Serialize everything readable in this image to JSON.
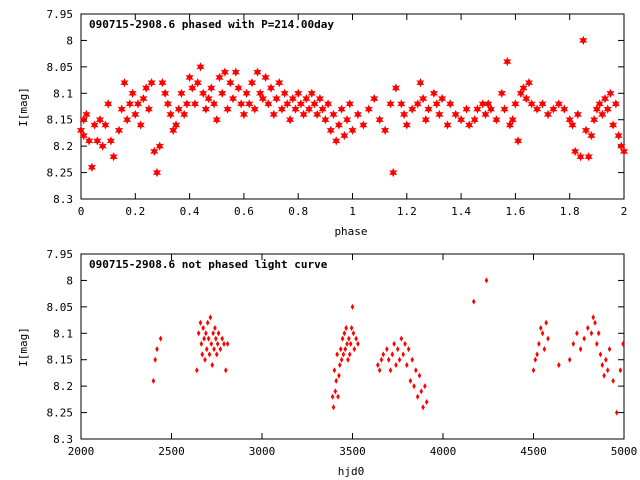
{
  "chart_data": [
    {
      "type": "scatter",
      "title": "090715-2908.6 phased with P=214.00day",
      "xlabel": "phase",
      "ylabel": "I[mag]",
      "xlim": [
        0,
        2
      ],
      "ylim": [
        7.95,
        8.3
      ],
      "y_inverted": true,
      "grid": false,
      "marker": "star",
      "color": "#ff0000",
      "x_ticks": [
        {
          "v": 0,
          "label": "0"
        },
        {
          "v": 0.2,
          "label": "0.2"
        },
        {
          "v": 0.4,
          "label": "0.4"
        },
        {
          "v": 0.6,
          "label": "0.6"
        },
        {
          "v": 0.8,
          "label": "0.8"
        },
        {
          "v": 1,
          "label": "1"
        },
        {
          "v": 1.2,
          "label": "1.2"
        },
        {
          "v": 1.4,
          "label": "1.4"
        },
        {
          "v": 1.6,
          "label": "1.6"
        },
        {
          "v": 1.8,
          "label": "1.8"
        },
        {
          "v": 2,
          "label": "2"
        }
      ],
      "y_ticks": [
        {
          "v": 7.95,
          "label": "7.95"
        },
        {
          "v": 8,
          "label": "8"
        },
        {
          "v": 8.05,
          "label": "8.05"
        },
        {
          "v": 8.1,
          "label": "8.1"
        },
        {
          "v": 8.15,
          "label": "8.15"
        },
        {
          "v": 8.2,
          "label": "8.2"
        },
        {
          "v": 8.25,
          "label": "8.25"
        },
        {
          "v": 8.3,
          "label": "8.3"
        }
      ],
      "points": [
        [
          0.0,
          8.17
        ],
        [
          0.01,
          8.15
        ],
        [
          0.01,
          8.18
        ],
        [
          0.02,
          8.14
        ],
        [
          0.03,
          8.19
        ],
        [
          0.04,
          8.24
        ],
        [
          0.05,
          8.16
        ],
        [
          0.06,
          8.19
        ],
        [
          0.07,
          8.15
        ],
        [
          0.08,
          8.2
        ],
        [
          0.09,
          8.16
        ],
        [
          0.1,
          8.12
        ],
        [
          0.11,
          8.19
        ],
        [
          0.12,
          8.22
        ],
        [
          0.14,
          8.17
        ],
        [
          0.15,
          8.13
        ],
        [
          0.16,
          8.08
        ],
        [
          0.17,
          8.15
        ],
        [
          0.18,
          8.12
        ],
        [
          0.19,
          8.1
        ],
        [
          0.2,
          8.14
        ],
        [
          0.21,
          8.12
        ],
        [
          0.22,
          8.16
        ],
        [
          0.23,
          8.11
        ],
        [
          0.24,
          8.09
        ],
        [
          0.25,
          8.13
        ],
        [
          0.26,
          8.08
        ],
        [
          0.27,
          8.21
        ],
        [
          0.28,
          8.25
        ],
        [
          0.29,
          8.2
        ],
        [
          0.3,
          8.08
        ],
        [
          0.31,
          8.1
        ],
        [
          0.32,
          8.12
        ],
        [
          0.33,
          8.14
        ],
        [
          0.34,
          8.17
        ],
        [
          0.35,
          8.16
        ],
        [
          0.36,
          8.13
        ],
        [
          0.37,
          8.1
        ],
        [
          0.38,
          8.14
        ],
        [
          0.39,
          8.12
        ],
        [
          0.4,
          8.07
        ],
        [
          0.41,
          8.09
        ],
        [
          0.42,
          8.12
        ],
        [
          0.43,
          8.08
        ],
        [
          0.44,
          8.05
        ],
        [
          0.45,
          8.1
        ],
        [
          0.46,
          8.13
        ],
        [
          0.47,
          8.11
        ],
        [
          0.48,
          8.09
        ],
        [
          0.49,
          8.12
        ],
        [
          0.5,
          8.15
        ],
        [
          0.51,
          8.07
        ],
        [
          0.52,
          8.1
        ],
        [
          0.53,
          8.06
        ],
        [
          0.54,
          8.13
        ],
        [
          0.55,
          8.08
        ],
        [
          0.56,
          8.11
        ],
        [
          0.57,
          8.06
        ],
        [
          0.58,
          8.09
        ],
        [
          0.59,
          8.12
        ],
        [
          0.6,
          8.14
        ],
        [
          0.61,
          8.1
        ],
        [
          0.62,
          8.12
        ],
        [
          0.63,
          8.08
        ],
        [
          0.64,
          8.13
        ],
        [
          0.65,
          8.06
        ],
        [
          0.66,
          8.1
        ],
        [
          0.67,
          8.11
        ],
        [
          0.68,
          8.07
        ],
        [
          0.69,
          8.12
        ],
        [
          0.7,
          8.09
        ],
        [
          0.71,
          8.14
        ],
        [
          0.72,
          8.11
        ],
        [
          0.73,
          8.08
        ],
        [
          0.74,
          8.13
        ],
        [
          0.75,
          8.1
        ],
        [
          0.76,
          8.12
        ],
        [
          0.77,
          8.15
        ],
        [
          0.78,
          8.11
        ],
        [
          0.79,
          8.13
        ],
        [
          0.8,
          8.1
        ],
        [
          0.81,
          8.12
        ],
        [
          0.82,
          8.14
        ],
        [
          0.83,
          8.11
        ],
        [
          0.84,
          8.13
        ],
        [
          0.85,
          8.1
        ],
        [
          0.86,
          8.12
        ],
        [
          0.87,
          8.14
        ],
        [
          0.88,
          8.11
        ],
        [
          0.89,
          8.13
        ],
        [
          0.9,
          8.15
        ],
        [
          0.91,
          8.12
        ],
        [
          0.92,
          8.17
        ],
        [
          0.93,
          8.14
        ],
        [
          0.94,
          8.19
        ],
        [
          0.95,
          8.16
        ],
        [
          0.96,
          8.13
        ],
        [
          0.97,
          8.18
        ],
        [
          0.98,
          8.15
        ],
        [
          0.99,
          8.12
        ],
        [
          1.0,
          8.17
        ],
        [
          1.02,
          8.14
        ],
        [
          1.04,
          8.16
        ],
        [
          1.06,
          8.13
        ],
        [
          1.08,
          8.11
        ],
        [
          1.1,
          8.15
        ],
        [
          1.12,
          8.17
        ],
        [
          1.14,
          8.12
        ],
        [
          1.15,
          8.25
        ],
        [
          1.16,
          8.09
        ],
        [
          1.18,
          8.12
        ],
        [
          1.19,
          8.14
        ],
        [
          1.2,
          8.16
        ],
        [
          1.22,
          8.13
        ],
        [
          1.24,
          8.12
        ],
        [
          1.25,
          8.08
        ],
        [
          1.26,
          8.11
        ],
        [
          1.27,
          8.15
        ],
        [
          1.28,
          8.13
        ],
        [
          1.3,
          8.1
        ],
        [
          1.31,
          8.12
        ],
        [
          1.32,
          8.14
        ],
        [
          1.33,
          8.11
        ],
        [
          1.35,
          8.16
        ],
        [
          1.36,
          8.12
        ],
        [
          1.38,
          8.14
        ],
        [
          1.4,
          8.15
        ],
        [
          1.42,
          8.13
        ],
        [
          1.43,
          8.16
        ],
        [
          1.45,
          8.15
        ],
        [
          1.46,
          8.13
        ],
        [
          1.48,
          8.12
        ],
        [
          1.49,
          8.14
        ],
        [
          1.5,
          8.12
        ],
        [
          1.51,
          8.13
        ],
        [
          1.53,
          8.15
        ],
        [
          1.55,
          8.1
        ],
        [
          1.56,
          8.13
        ],
        [
          1.57,
          8.04
        ],
        [
          1.58,
          8.16
        ],
        [
          1.59,
          8.15
        ],
        [
          1.6,
          8.12
        ],
        [
          1.61,
          8.19
        ],
        [
          1.62,
          8.1
        ],
        [
          1.63,
          8.09
        ],
        [
          1.64,
          8.11
        ],
        [
          1.65,
          8.08
        ],
        [
          1.66,
          8.12
        ],
        [
          1.68,
          8.13
        ],
        [
          1.7,
          8.12
        ],
        [
          1.72,
          8.14
        ],
        [
          1.74,
          8.13
        ],
        [
          1.76,
          8.12
        ],
        [
          1.78,
          8.13
        ],
        [
          1.8,
          8.15
        ],
        [
          1.81,
          8.16
        ],
        [
          1.82,
          8.21
        ],
        [
          1.83,
          8.14
        ],
        [
          1.84,
          8.22
        ],
        [
          1.85,
          8.0
        ],
        [
          1.86,
          8.17
        ],
        [
          1.87,
          8.22
        ],
        [
          1.88,
          8.18
        ],
        [
          1.89,
          8.15
        ],
        [
          1.9,
          8.13
        ],
        [
          1.91,
          8.12
        ],
        [
          1.92,
          8.14
        ],
        [
          1.93,
          8.11
        ],
        [
          1.94,
          8.13
        ],
        [
          1.95,
          8.1
        ],
        [
          1.96,
          8.16
        ],
        [
          1.97,
          8.12
        ],
        [
          1.98,
          8.18
        ],
        [
          1.99,
          8.2
        ],
        [
          2.0,
          8.21
        ]
      ]
    },
    {
      "type": "scatter",
      "title": "090715-2908.6 not phased light curve",
      "xlabel": "hjd0",
      "ylabel": "I[mag]",
      "xlim": [
        2000,
        5000
      ],
      "ylim": [
        7.95,
        8.3
      ],
      "y_inverted": true,
      "grid": false,
      "marker": "diamond",
      "color": "#ff0000",
      "x_ticks": [
        {
          "v": 2000,
          "label": "2000"
        },
        {
          "v": 2500,
          "label": "2500"
        },
        {
          "v": 3000,
          "label": "3000"
        },
        {
          "v": 3500,
          "label": "3500"
        },
        {
          "v": 4000,
          "label": "4000"
        },
        {
          "v": 4500,
          "label": "4500"
        },
        {
          "v": 5000,
          "label": "5000"
        }
      ],
      "y_ticks": [
        {
          "v": 7.95,
          "label": "7.95"
        },
        {
          "v": 8,
          "label": "8"
        },
        {
          "v": 8.05,
          "label": "8.05"
        },
        {
          "v": 8.1,
          "label": "8.1"
        },
        {
          "v": 8.15,
          "label": "8.15"
        },
        {
          "v": 8.2,
          "label": "8.2"
        },
        {
          "v": 8.25,
          "label": "8.25"
        },
        {
          "v": 8.3,
          "label": "8.3"
        }
      ],
      "points": [
        [
          2400,
          8.19
        ],
        [
          2410,
          8.15
        ],
        [
          2420,
          8.13
        ],
        [
          2440,
          8.11
        ],
        [
          2640,
          8.17
        ],
        [
          2650,
          8.1
        ],
        [
          2660,
          8.08
        ],
        [
          2665,
          8.12
        ],
        [
          2670,
          8.14
        ],
        [
          2675,
          8.09
        ],
        [
          2680,
          8.11
        ],
        [
          2685,
          8.15
        ],
        [
          2690,
          8.1
        ],
        [
          2695,
          8.13
        ],
        [
          2700,
          8.08
        ],
        [
          2705,
          8.11
        ],
        [
          2710,
          8.14
        ],
        [
          2715,
          8.07
        ],
        [
          2720,
          8.12
        ],
        [
          2725,
          8.16
        ],
        [
          2730,
          8.1
        ],
        [
          2735,
          8.13
        ],
        [
          2740,
          8.09
        ],
        [
          2745,
          8.11
        ],
        [
          2750,
          8.14
        ],
        [
          2755,
          8.12
        ],
        [
          2760,
          8.1
        ],
        [
          2770,
          8.13
        ],
        [
          2780,
          8.11
        ],
        [
          2790,
          8.12
        ],
        [
          2800,
          8.17
        ],
        [
          2810,
          8.12
        ],
        [
          3390,
          8.22
        ],
        [
          3395,
          8.24
        ],
        [
          3400,
          8.17
        ],
        [
          3405,
          8.21
        ],
        [
          3410,
          8.19
        ],
        [
          3415,
          8.14
        ],
        [
          3420,
          8.22
        ],
        [
          3425,
          8.18
        ],
        [
          3430,
          8.16
        ],
        [
          3435,
          8.13
        ],
        [
          3440,
          8.15
        ],
        [
          3445,
          8.11
        ],
        [
          3450,
          8.14
        ],
        [
          3455,
          8.1
        ],
        [
          3460,
          8.13
        ],
        [
          3465,
          8.09
        ],
        [
          3470,
          8.12
        ],
        [
          3475,
          8.15
        ],
        [
          3480,
          8.11
        ],
        [
          3485,
          8.14
        ],
        [
          3490,
          8.12
        ],
        [
          3495,
          8.09
        ],
        [
          3500,
          8.05
        ],
        [
          3505,
          8.1
        ],
        [
          3510,
          8.13
        ],
        [
          3520,
          8.11
        ],
        [
          3530,
          8.12
        ],
        [
          3640,
          8.16
        ],
        [
          3650,
          8.17
        ],
        [
          3660,
          8.15
        ],
        [
          3670,
          8.14
        ],
        [
          3690,
          8.13
        ],
        [
          3700,
          8.15
        ],
        [
          3710,
          8.17
        ],
        [
          3720,
          8.14
        ],
        [
          3730,
          8.12
        ],
        [
          3740,
          8.16
        ],
        [
          3750,
          8.13
        ],
        [
          3760,
          8.15
        ],
        [
          3770,
          8.11
        ],
        [
          3780,
          8.14
        ],
        [
          3790,
          8.12
        ],
        [
          3800,
          8.16
        ],
        [
          3810,
          8.13
        ],
        [
          3820,
          8.19
        ],
        [
          3830,
          8.15
        ],
        [
          3840,
          8.2
        ],
        [
          3850,
          8.17
        ],
        [
          3860,
          8.22
        ],
        [
          3870,
          8.18
        ],
        [
          3880,
          8.21
        ],
        [
          3890,
          8.24
        ],
        [
          3900,
          8.2
        ],
        [
          3910,
          8.23
        ],
        [
          4170,
          8.04
        ],
        [
          4240,
          8.0
        ],
        [
          4500,
          8.17
        ],
        [
          4510,
          8.15
        ],
        [
          4520,
          8.14
        ],
        [
          4530,
          8.12
        ],
        [
          4540,
          8.09
        ],
        [
          4550,
          8.1
        ],
        [
          4560,
          8.13
        ],
        [
          4570,
          8.08
        ],
        [
          4580,
          8.11
        ],
        [
          4640,
          8.16
        ],
        [
          4700,
          8.15
        ],
        [
          4720,
          8.12
        ],
        [
          4740,
          8.1
        ],
        [
          4760,
          8.13
        ],
        [
          4780,
          8.11
        ],
        [
          4800,
          8.09
        ],
        [
          4820,
          8.1
        ],
        [
          4830,
          8.07
        ],
        [
          4840,
          8.08
        ],
        [
          4850,
          8.12
        ],
        [
          4860,
          8.1
        ],
        [
          4870,
          8.14
        ],
        [
          4880,
          8.16
        ],
        [
          4890,
          8.18
        ],
        [
          4900,
          8.15
        ],
        [
          4910,
          8.17
        ],
        [
          4920,
          8.13
        ],
        [
          4940,
          8.19
        ],
        [
          4960,
          8.25
        ],
        [
          4980,
          8.17
        ],
        [
          4995,
          8.12
        ]
      ]
    }
  ]
}
